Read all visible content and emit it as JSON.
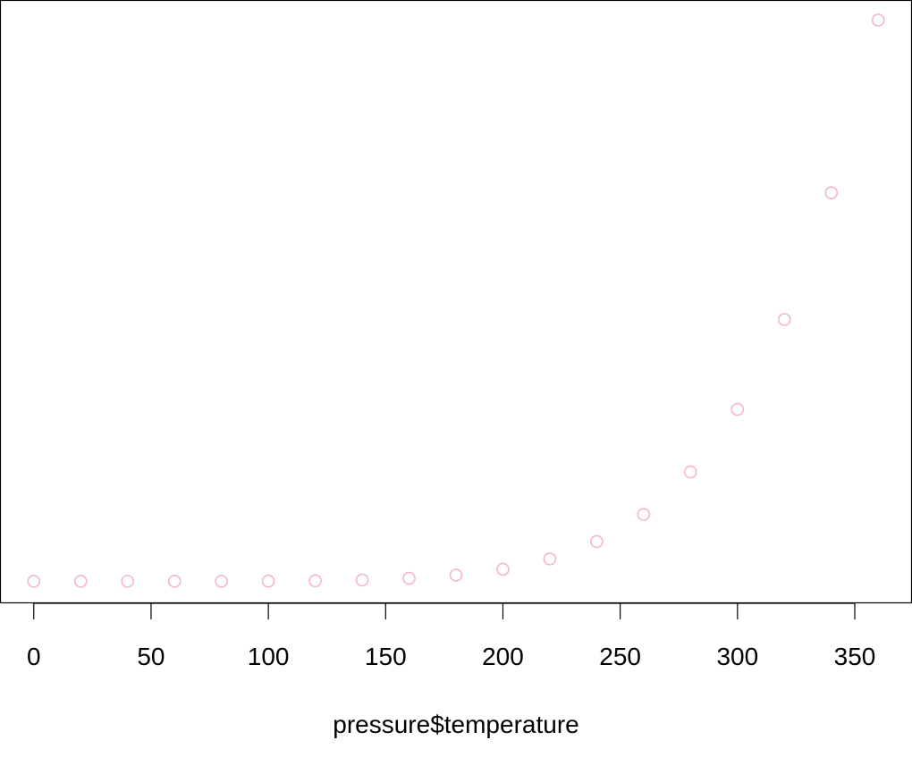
{
  "chart_data": {
    "type": "scatter",
    "title": "",
    "xlabel": "pressure$temperature",
    "ylabel": "",
    "xlim": [
      -14.4,
      374.4
    ],
    "ylim": [
      -31.6,
      834.8
    ],
    "x_ticks": [
      0,
      50,
      100,
      150,
      200,
      250,
      300,
      350
    ],
    "x_tick_labels": [
      "0",
      "50",
      "100",
      "150",
      "200",
      "250",
      "300",
      "350"
    ],
    "y_axis_shown": false,
    "grid": false,
    "marker": "open-circle",
    "marker_color": "#f4b6c8",
    "x": [
      0,
      20,
      40,
      60,
      80,
      100,
      120,
      140,
      160,
      180,
      200,
      220,
      240,
      260,
      280,
      300,
      320,
      340,
      360
    ],
    "y": [
      0.0002,
      0.0012,
      0.006,
      0.03,
      0.09,
      0.27,
      0.75,
      1.85,
      4.2,
      8.8,
      17.3,
      32.1,
      57.0,
      96.0,
      157.0,
      247.0,
      376.0,
      558.0,
      806.0
    ]
  }
}
